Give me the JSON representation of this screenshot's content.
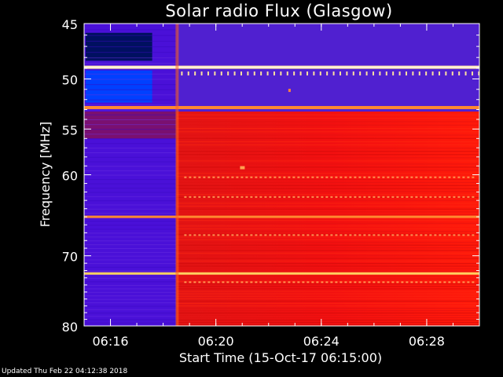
{
  "chart_data": {
    "type": "heatmap",
    "title": "Solar radio Flux (Glasgow)",
    "xlabel": "Start Time (15-Oct-17 06:15:00)",
    "ylabel": "Frequency [MHz]",
    "y_scale": "log",
    "ylim": [
      45,
      80
    ],
    "xlim": [
      "06:15:00",
      "06:30:00"
    ],
    "x_tick_labels": [
      "06:16",
      "06:20",
      "06:24",
      "06:28"
    ],
    "x_tick_minutes": [
      16,
      20,
      24,
      28
    ],
    "y_ticks": [
      45,
      50,
      55,
      60,
      70,
      80
    ],
    "colors": {
      "background_low": "#4a10d8",
      "background_high": "#ff0000",
      "dark_blue": "#001060",
      "bright_blue": "#0040ff",
      "band_peak": "#ffd070"
    },
    "event": {
      "type": "broadband onset",
      "time": "06:18:30",
      "description_visible": false
    },
    "bright_bands_mhz": [
      48.9,
      52.8,
      65.0,
      72.4
    ]
  },
  "footer": {
    "updated": "Updated Thu Feb 22 04:12:38 2018"
  }
}
